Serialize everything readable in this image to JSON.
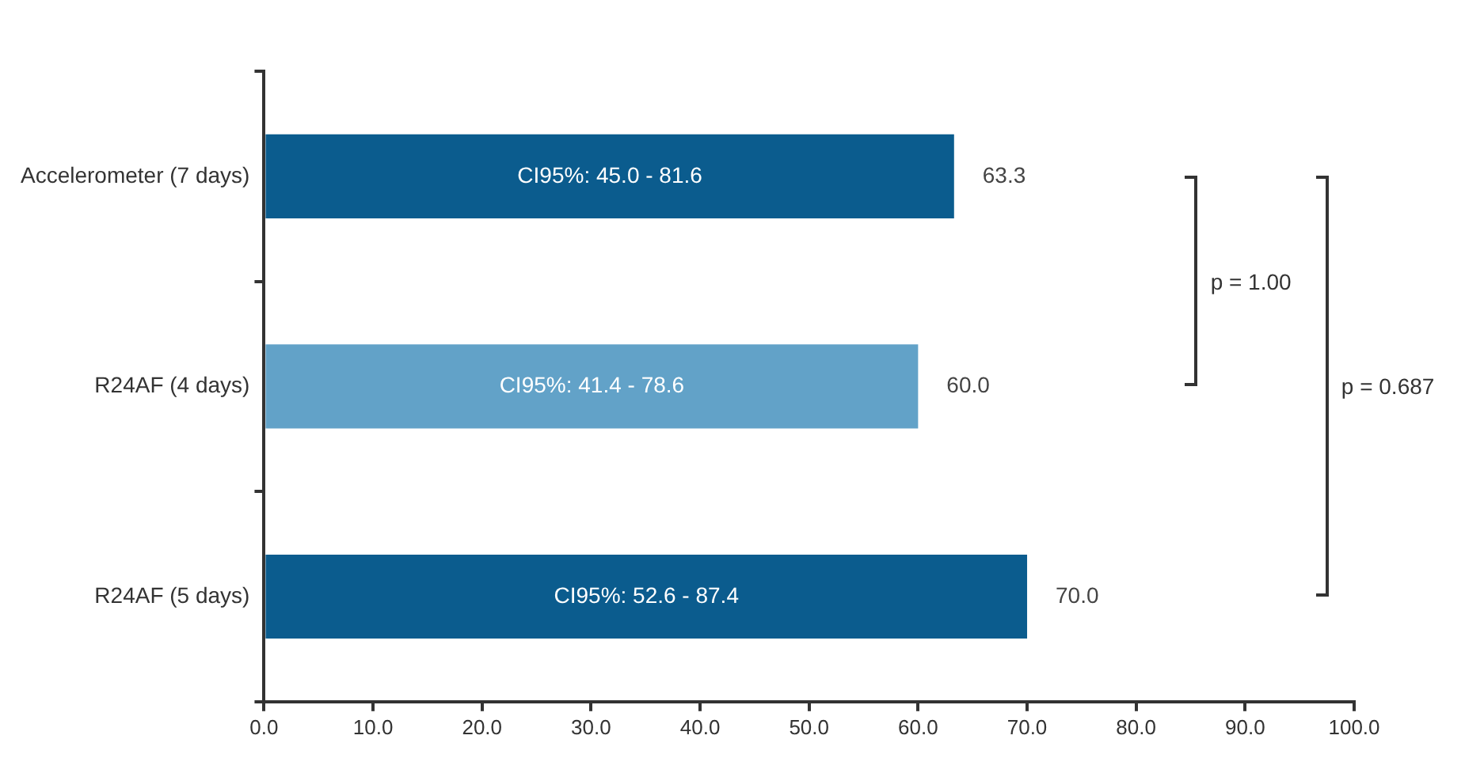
{
  "chart_data": {
    "type": "bar",
    "orientation": "horizontal",
    "categories": [
      "Accelerometer (7 days)",
      "R24AF (4 days)",
      "R24AF (5 days)"
    ],
    "values": [
      63.3,
      60.0,
      70.0
    ],
    "colors": [
      "#0b5c8e",
      "#62a2c8",
      "#0b5c8e"
    ],
    "value_labels": [
      "63.3",
      "60.0",
      "70.0"
    ],
    "xlim": [
      0,
      100
    ],
    "xticks": [
      {
        "value": 0,
        "label": "0.0"
      },
      {
        "value": 10,
        "label": "10.0"
      },
      {
        "value": 20,
        "label": "20.0"
      },
      {
        "value": 30,
        "label": "30.0"
      },
      {
        "value": 40,
        "label": "40.0"
      },
      {
        "value": 50,
        "label": "50.0"
      },
      {
        "value": 60,
        "label": "60.0"
      },
      {
        "value": 70,
        "label": "70.0"
      },
      {
        "value": 80,
        "label": "80.0"
      },
      {
        "value": 90,
        "label": "90.0"
      },
      {
        "value": 100,
        "label": "100.0"
      }
    ],
    "annotations": [
      "CI95%: 45.0 - 81.6",
      "CI95%: 41.4 - 78.6",
      "CI95%: 52.6 - 87.4",
      "p = 1.00",
      "p = 0.687"
    ],
    "grid": false,
    "legend": false
  }
}
